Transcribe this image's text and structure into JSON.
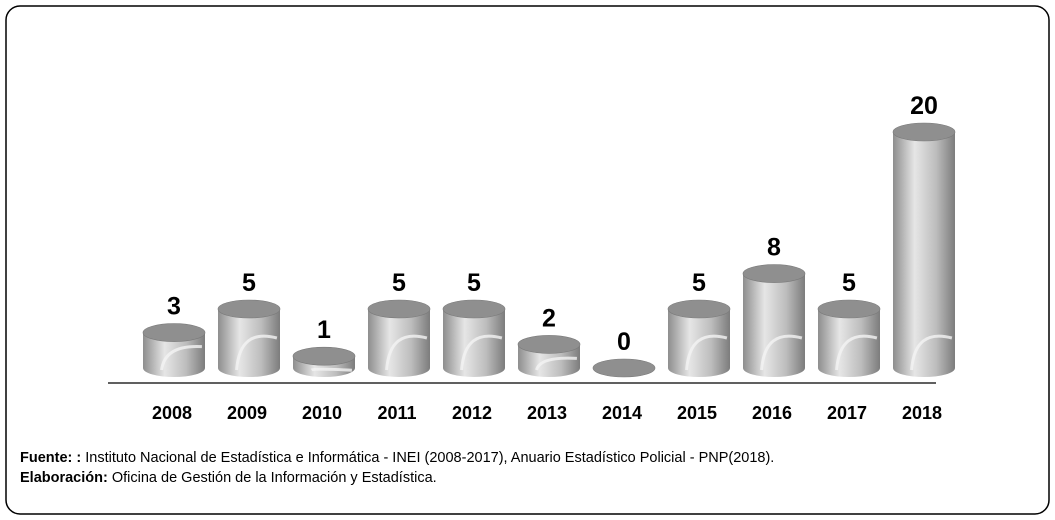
{
  "chart_data": {
    "type": "bar",
    "categories": [
      "2008",
      "2009",
      "2010",
      "2011",
      "2012",
      "2013",
      "2014",
      "2015",
      "2016",
      "2017",
      "2018"
    ],
    "values": [
      3,
      5,
      1,
      5,
      5,
      2,
      0,
      5,
      8,
      5,
      20
    ],
    "color": "#b0b0b0",
    "footer": {
      "source_label": "Fuente: :",
      "source": " Instituto Nacional de Estadística e Informática - INEI (2008-2017), Anuario Estadístico Policial - PNP(2018).",
      "author_label": "Elaboración:",
      "author": " Oficina de Gestión de la Información y Estadística."
    }
  }
}
